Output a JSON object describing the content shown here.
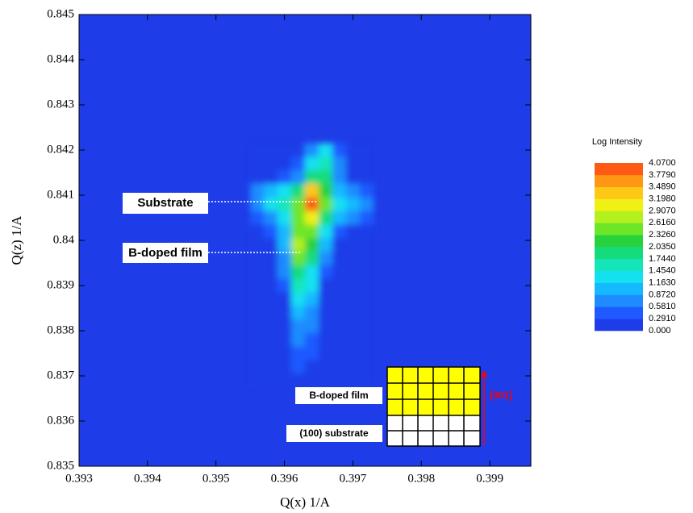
{
  "chart_data": {
    "type": "heatmap",
    "xlabel": "Q(x) 1/A",
    "ylabel": "Q(z) 1/A",
    "xlim": [
      0.393,
      0.3996
    ],
    "ylim": [
      0.835,
      0.845
    ],
    "xticks": [
      0.393,
      0.394,
      0.395,
      0.396,
      0.397,
      0.398,
      0.399
    ],
    "yticks": [
      0.835,
      0.836,
      0.837,
      0.838,
      0.839,
      0.84,
      0.841,
      0.842,
      0.843,
      0.844,
      0.845
    ],
    "x": [
      0.3956,
      0.3958,
      0.396,
      0.3962,
      0.3964,
      0.3966,
      0.3968,
      0.397,
      0.3972
    ],
    "y": [
      0.842,
      0.8417,
      0.8414,
      0.8411,
      0.8408,
      0.8405,
      0.8402,
      0.8399,
      0.8396,
      0.8393,
      0.839,
      0.8387,
      0.8384,
      0.8381,
      0.8378,
      0.8375,
      0.8372,
      0.8369
    ],
    "z": [
      [
        0,
        0,
        0,
        0,
        0.6,
        1.2,
        0.3,
        0,
        0
      ],
      [
        0,
        0,
        0,
        0.3,
        1.2,
        1.6,
        0.6,
        0,
        0
      ],
      [
        0,
        0,
        0.3,
        0.8,
        1.8,
        1.8,
        0.6,
        0.2,
        0
      ],
      [
        0.6,
        0.9,
        1.2,
        1.8,
        3.2,
        2.2,
        1.0,
        0.6,
        0.3
      ],
      [
        0.8,
        1.2,
        1.6,
        2.6,
        4.0,
        2.6,
        1.4,
        0.9,
        0.6
      ],
      [
        0.4,
        0.6,
        1.2,
        2.4,
        3.0,
        1.8,
        0.9,
        0.6,
        0.3
      ],
      [
        0.2,
        0.3,
        0.9,
        2.4,
        2.6,
        1.2,
        0.4,
        0.2,
        0
      ],
      [
        0,
        0.2,
        1.0,
        2.9,
        2.3,
        0.9,
        0.2,
        0,
        0
      ],
      [
        0,
        0,
        0.8,
        2.6,
        1.8,
        0.6,
        0,
        0,
        0
      ],
      [
        0,
        0,
        0.6,
        2.0,
        1.4,
        0.3,
        0,
        0,
        0
      ],
      [
        0,
        0,
        0.3,
        1.6,
        1.2,
        0.2,
        0,
        0,
        0
      ],
      [
        0,
        0,
        0.2,
        1.2,
        1.0,
        0,
        0,
        0,
        0
      ],
      [
        0,
        0,
        0,
        1.0,
        0.8,
        0,
        0,
        0,
        0
      ],
      [
        0,
        0,
        0,
        0.8,
        0.6,
        0,
        0,
        0,
        0
      ],
      [
        0,
        0,
        0,
        0.6,
        0.4,
        0,
        0,
        0,
        0
      ],
      [
        0,
        0,
        0,
        0.4,
        0.3,
        0,
        0,
        0,
        0
      ],
      [
        0,
        0,
        0,
        0.3,
        0.2,
        0,
        0,
        0,
        0
      ],
      [
        0,
        0,
        0,
        0.2,
        0,
        0,
        0,
        0,
        0
      ]
    ],
    "colorbar": {
      "title": "Log Intensity",
      "levels": [
        {
          "value": 0,
          "label": "0.000"
        },
        {
          "value": 0.291,
          "label": "0.2910"
        },
        {
          "value": 0.581,
          "label": "0.5810"
        },
        {
          "value": 0.872,
          "label": "0.8720"
        },
        {
          "value": 1.163,
          "label": "1.1630"
        },
        {
          "value": 1.454,
          "label": "1.4540"
        },
        {
          "value": 1.744,
          "label": "1.7440"
        },
        {
          "value": 2.035,
          "label": "2.0350"
        },
        {
          "value": 2.326,
          "label": "2.3260"
        },
        {
          "value": 2.616,
          "label": "2.6160"
        },
        {
          "value": 2.907,
          "label": "2.9070"
        },
        {
          "value": 3.198,
          "label": "3.1980"
        },
        {
          "value": 3.489,
          "label": "3.4890"
        },
        {
          "value": 3.779,
          "label": "3.7790"
        },
        {
          "value": 4.07,
          "label": "4.0700"
        }
      ],
      "colors": [
        "#1e3ce8",
        "#1e5aff",
        "#1e8cff",
        "#14b9ff",
        "#14e1f0",
        "#14e6b9",
        "#14dc7d",
        "#28d23c",
        "#6ee628",
        "#b4f01e",
        "#f0f014",
        "#ffc814",
        "#ff9614",
        "#ff5a14"
      ]
    },
    "annotations": [
      "Substrate",
      "B-doped film"
    ],
    "inset": {
      "film": "B-doped film",
      "substrate": "(100) substrate",
      "direction": "[001]"
    }
  }
}
